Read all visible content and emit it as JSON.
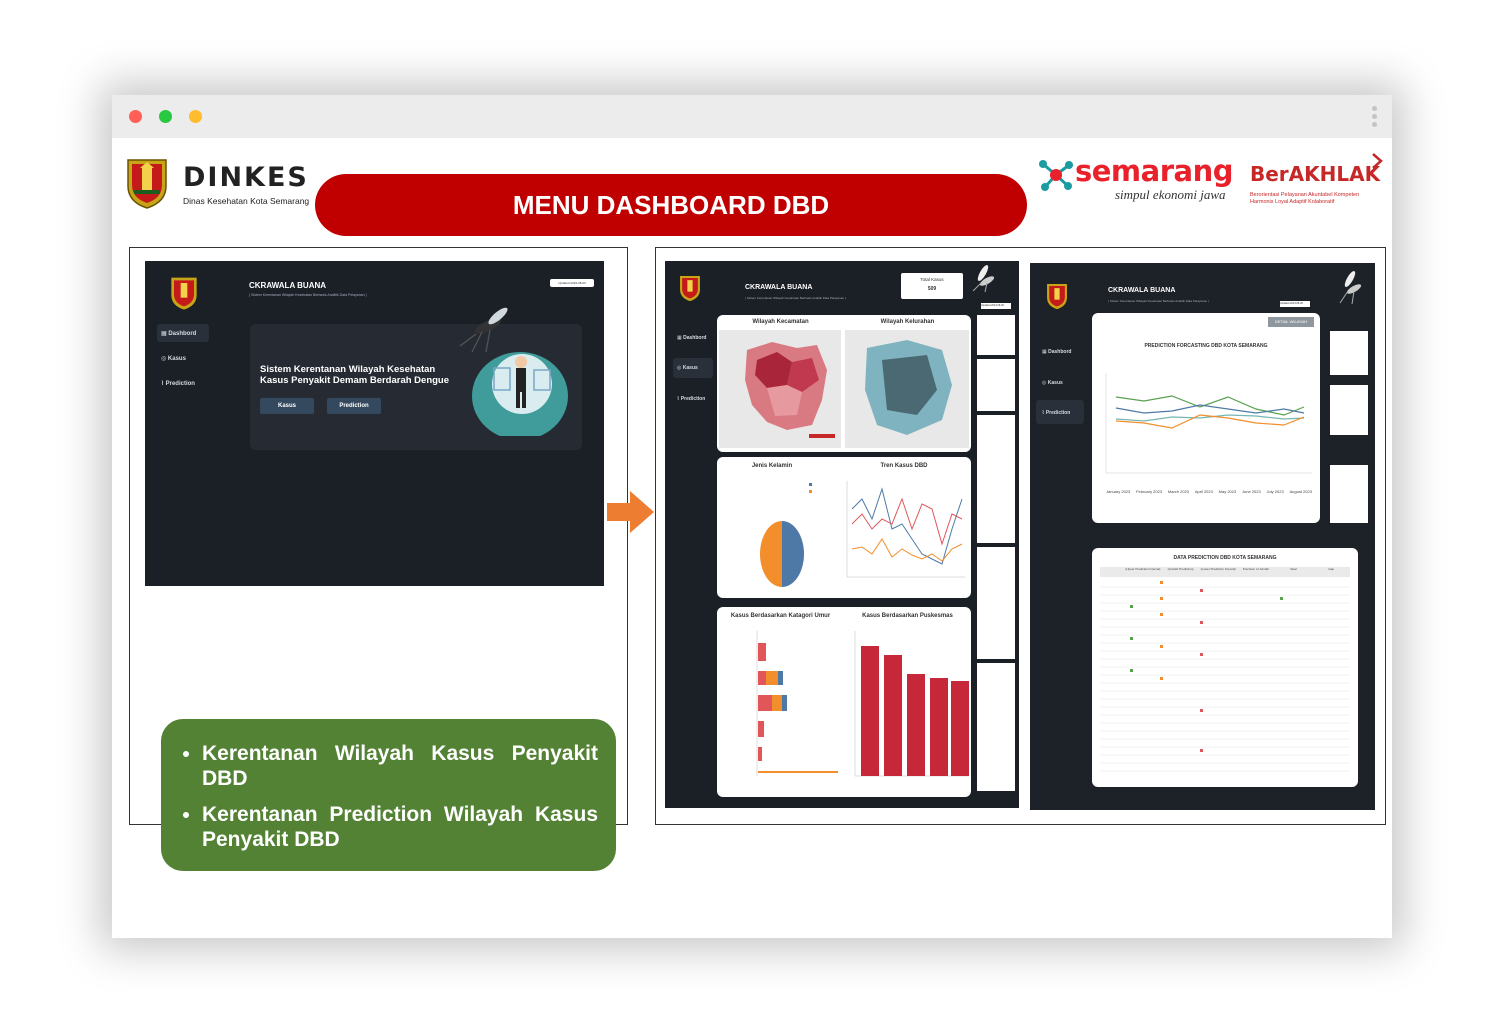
{
  "window": {
    "controls": {
      "close_color": "#ff5f57",
      "minimize_color": "#28c840",
      "maximize_color": "#febc2e"
    },
    "menu_icon": "kebab-icon"
  },
  "header": {
    "dinkes": {
      "brand": "DINKES",
      "subtitle": "Dinas Kesehatan Kota Semarang"
    },
    "banner_title": "MENU DASHBOARD DBD",
    "semarang": {
      "word": "semarang",
      "tagline": "simpul ekonomi jawa"
    },
    "berakhlak": {
      "word": "BerAKHLAK",
      "line1": "Berorientasi Pelayanan Akuntabel Kompeten",
      "line2": "Harmonis Loyal Adaptif Kolaboratif"
    }
  },
  "left_panel": {
    "home": {
      "title": "CKRAWALA BUANA",
      "subtitle": "( Sistem Kerentanan Wilayah Kesehatan Berbasis Analitik Data Pelayanan )",
      "status": "Updated 2023-08-06",
      "nav": [
        "Dashbord",
        "Kasus",
        "Prediction"
      ],
      "hero_line1": "Sistem Kerentanan Wilayah Kesehatan",
      "hero_line2": "Kasus Penyakit Demam Berdarah Dengue",
      "btn_kasus": "Kasus",
      "btn_prediction": "Prediction"
    },
    "bullets": [
      "Kerentanan Wilayah Kasus Penyakit DBD",
      "Kerentanan Prediction Wilayah Kasus Penyakit DBD"
    ]
  },
  "arrow_color": "#ed7d31",
  "right_panel": {
    "kasus": {
      "title": "CKRAWALA BUANA",
      "subtitle": "( Sistem Kerentanan Wilayah Kesehatan Berbasis Analitik Data Pelayanan )",
      "total_label": "Total Kasus",
      "total_value": "509",
      "status": "Updated 2023-08-06",
      "nav": [
        "Dashbord",
        "Kasus",
        "Prediction"
      ],
      "map_left": "Wilayah Kecamatan",
      "map_right": "Wilayah Kelurahan",
      "gender_title": "Jenis Kelamin",
      "trend_title": "Tren Kasus DBD",
      "age_title": "Kasus Berdasarkan Katagori Umur",
      "puskesmas_title": "Kasus Berdasarkan Puskesmas"
    },
    "prediction": {
      "title": "CKRAWALA BUANA",
      "subtitle": "( Sistem Kerentanan Wilayah Kesehatan Berbasis Analitik Data Pelayanan )",
      "status": "Updated 2023-08-06",
      "nav": [
        "Dashbord",
        "Kasus",
        "Prediction"
      ],
      "detail_btn": "DETAIL WILAYAH",
      "chart_title": "PREDICTION FORCASTING DBD KOTA SEMARANG",
      "chart_x": [
        "January 2023",
        "February 2023",
        "March 2023",
        "April 2023",
        "May 2023",
        "June 2023",
        "July 2023",
        "August 2023"
      ],
      "table_title": "DATA PREDICTION DBD KOTA SEMARANG",
      "table_cols": [
        "(Upper Prediction Interval)",
        "(Jumlah Prediction)",
        "(Lower Prediction Interval)",
        "Precision of Jumlah",
        "Real",
        "Gap"
      ]
    }
  }
}
